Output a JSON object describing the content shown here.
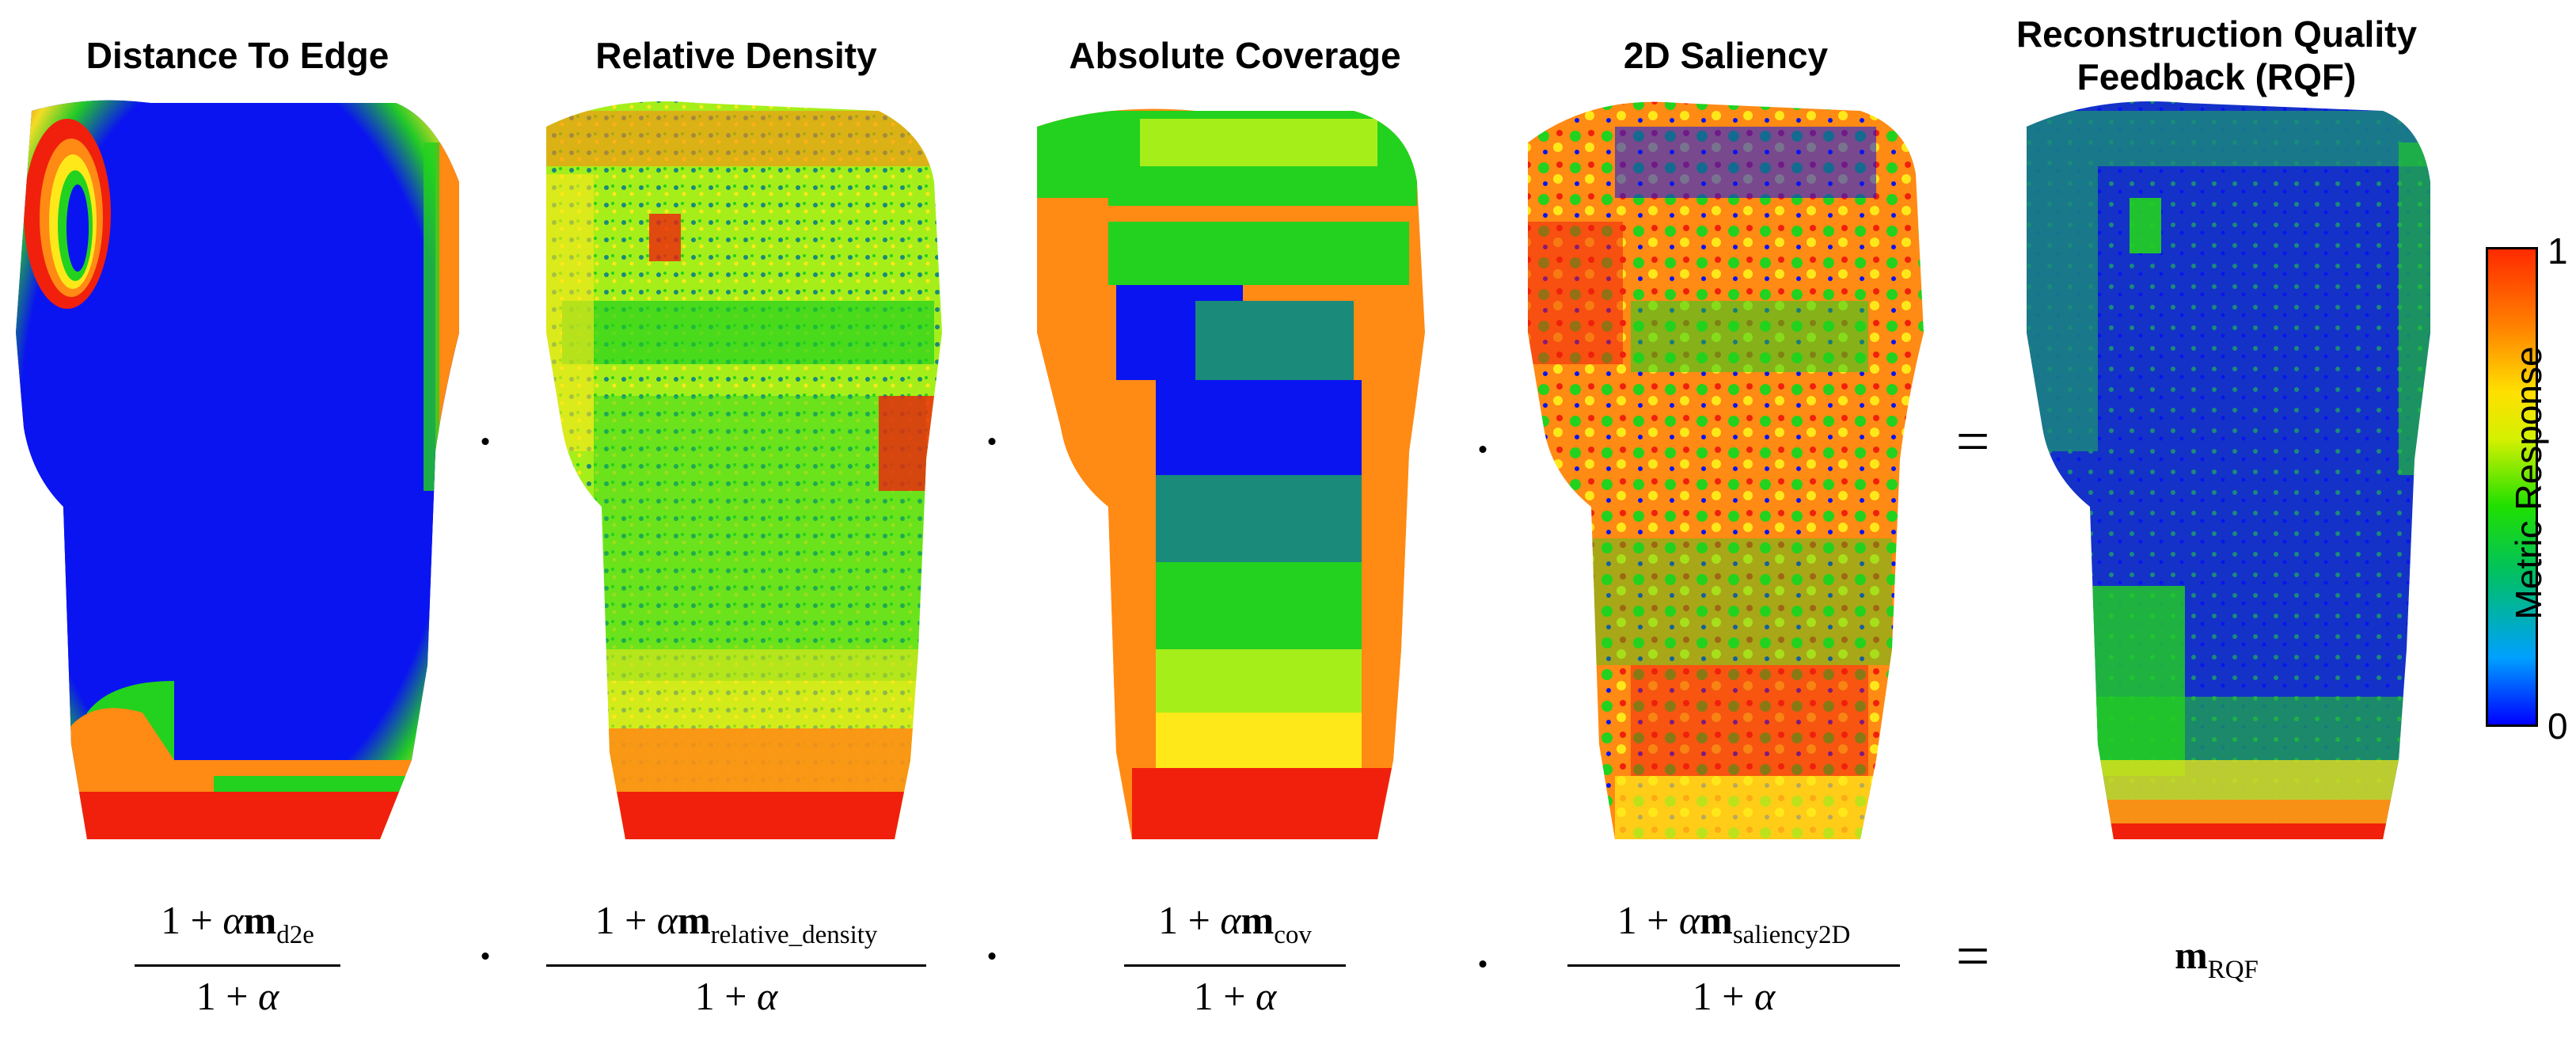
{
  "panels": [
    {
      "title_lines": [
        "Distance To Edge"
      ]
    },
    {
      "title_lines": [
        "Relative Density"
      ]
    },
    {
      "title_lines": [
        "Absolute Coverage"
      ]
    },
    {
      "title_lines": [
        "2D Saliency"
      ]
    },
    {
      "title_lines": [
        "Reconstruction Quality",
        "Feedback (RQF)"
      ]
    }
  ],
  "operators": {
    "dot_1": "·",
    "dot_2": "·",
    "dot_3": "·",
    "equals": "="
  },
  "formulas": [
    {
      "num_prefix": "1 + ",
      "alpha": "α",
      "m": "m",
      "sub": "d2e",
      "den_prefix": "1 + ",
      "den_alpha": "α"
    },
    {
      "num_prefix": "1 + ",
      "alpha": "α",
      "m": "m",
      "sub": "relative_density",
      "den_prefix": "1 + ",
      "den_alpha": "α"
    },
    {
      "num_prefix": "1 + ",
      "alpha": "α",
      "m": "m",
      "sub": "cov",
      "den_prefix": "1 + ",
      "den_alpha": "α"
    },
    {
      "num_prefix": "1 + ",
      "alpha": "α",
      "m": "m",
      "sub": "saliency2D",
      "den_prefix": "1 + ",
      "den_alpha": "α"
    }
  ],
  "result_formula": {
    "m": "m",
    "sub": "RQF"
  },
  "colorbar": {
    "label": "Metric Response",
    "max_tick": "1",
    "min_tick": "0",
    "colors": [
      "#0000ff",
      "#00a0ff",
      "#00c060",
      "#20e000",
      "#d4f000",
      "#ffe000",
      "#ff8000",
      "#ff2a00"
    ]
  },
  "heatmap_colors": {
    "blue": "#0a14f0",
    "teal": "#1a8a7a",
    "green": "#22d21e",
    "yellow_green": "#a6ee1a",
    "yellow": "#ffe81a",
    "orange": "#ff8a14",
    "red": "#f0200c"
  }
}
